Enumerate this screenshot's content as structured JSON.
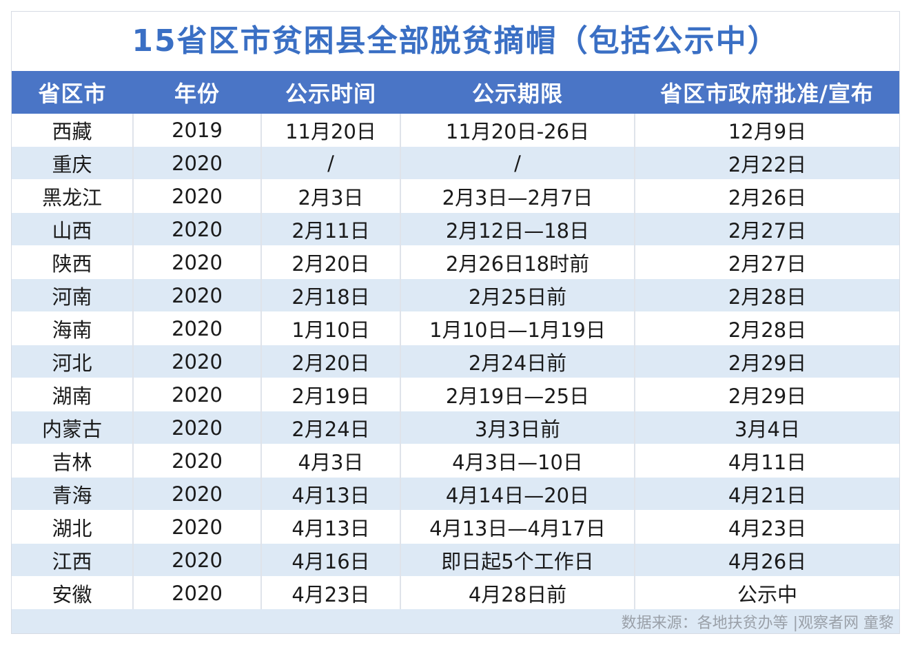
{
  "title": "15省区市贫困县全部脱贫摘帽（包括公示中）",
  "colors": {
    "title": "#3a6fc4",
    "header_bg": "#4a75c6",
    "stripe": "#dde9f5",
    "source": "#9aa0a8"
  },
  "table": {
    "headers": [
      "省区市",
      "年份",
      "公示时间",
      "公示期限",
      "省区市政府批准/宣布"
    ],
    "rows": [
      [
        "西藏",
        "2019",
        "11月20日",
        "11月20日-26日",
        "12月9日"
      ],
      [
        "重庆",
        "2020",
        "/",
        "/",
        "2月22日"
      ],
      [
        "黑龙江",
        "2020",
        "2月3日",
        "2月3日—2月7日",
        "2月26日"
      ],
      [
        "山西",
        "2020",
        "2月11日",
        "2月12日—18日",
        "2月27日"
      ],
      [
        "陕西",
        "2020",
        "2月20日",
        "2月26日18时前",
        "2月27日"
      ],
      [
        "河南",
        "2020",
        "2月18日",
        "2月25日前",
        "2月28日"
      ],
      [
        "海南",
        "2020",
        "1月10日",
        "1月10日—1月19日",
        "2月28日"
      ],
      [
        "河北",
        "2020",
        "2月20日",
        "2月24日前",
        "2月29日"
      ],
      [
        "湖南",
        "2020",
        "2月19日",
        "2月19日—25日",
        "2月29日"
      ],
      [
        "内蒙古",
        "2020",
        "2月24日",
        "3月3日前",
        "3月4日"
      ],
      [
        "吉林",
        "2020",
        "4月3日",
        "4月3日—10日",
        "4月11日"
      ],
      [
        "青海",
        "2020",
        "4月13日",
        "4月14日—20日",
        "4月21日"
      ],
      [
        "湖北",
        "2020",
        "4月13日",
        "4月13日—4月17日",
        "4月23日"
      ],
      [
        "江西",
        "2020",
        "4月16日",
        "即日起5个工作日",
        "4月26日"
      ],
      [
        "安徽",
        "2020",
        "4月23日",
        "4月28日前",
        "公示中"
      ]
    ]
  },
  "footer": {
    "source": "数据来源：各地扶贫办等 |观察者网 童黎"
  }
}
